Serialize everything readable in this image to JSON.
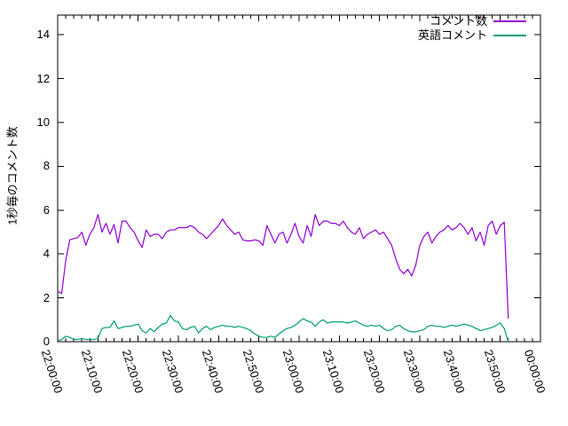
{
  "chart_data": {
    "type": "line",
    "title": "",
    "xlabel": "",
    "ylabel": "1秒毎のコメント数",
    "x_tick_labels": [
      "22:00:00",
      "22:10:00",
      "22:20:00",
      "22:30:00",
      "22:40:00",
      "22:50:00",
      "23:00:00",
      "23:10:00",
      "23:20:00",
      "23:30:00",
      "23:40:00",
      "23:50:00",
      "00:00:00"
    ],
    "x_major_tick_step_minutes": 10,
    "x_minor_tick_step_minutes": 2,
    "x_range_minutes": 120,
    "x_step_seconds": 60,
    "y_ticks": [
      0,
      2,
      4,
      6,
      8,
      10,
      12,
      14
    ],
    "ylim": [
      0,
      14.9
    ],
    "grid": false,
    "legend_position": "top-right-inside",
    "axis_color": "#000000",
    "background": "#ffffff",
    "series": [
      {
        "name": "コメント数",
        "color": "#9400d3",
        "start_time": "22:00:00",
        "values": [
          2.3,
          2.2,
          3.7,
          4.65,
          4.7,
          4.75,
          5.0,
          4.4,
          4.9,
          5.2,
          5.8,
          5.0,
          5.4,
          4.9,
          5.35,
          4.5,
          5.5,
          5.5,
          5.2,
          5.0,
          4.6,
          4.3,
          5.1,
          4.8,
          4.9,
          4.9,
          4.7,
          5.0,
          5.1,
          5.1,
          5.2,
          5.2,
          5.2,
          5.3,
          5.2,
          5.0,
          4.9,
          4.7,
          4.9,
          5.1,
          5.3,
          5.6,
          5.3,
          5.1,
          4.9,
          5.0,
          4.65,
          4.6,
          4.6,
          4.65,
          4.6,
          4.4,
          5.3,
          4.9,
          4.5,
          4.9,
          5.0,
          4.5,
          4.9,
          5.4,
          4.8,
          4.5,
          5.3,
          4.8,
          5.8,
          5.3,
          5.5,
          5.5,
          5.4,
          5.4,
          5.3,
          5.5,
          5.2,
          5.0,
          4.9,
          5.2,
          4.7,
          4.9,
          5.0,
          5.1,
          4.9,
          5.0,
          4.7,
          4.4,
          3.8,
          3.3,
          3.1,
          3.3,
          3.0,
          3.5,
          4.4,
          4.8,
          5.0,
          4.5,
          4.8,
          5.0,
          5.1,
          5.3,
          5.1,
          5.2,
          5.4,
          5.2,
          4.9,
          5.2,
          4.6,
          5.0,
          4.4,
          5.3,
          5.5,
          4.9,
          5.3,
          5.45,
          1.05
        ]
      },
      {
        "name": "英語コメント",
        "color": "#009e73",
        "start_time": "22:00:00",
        "values": [
          0.05,
          0.1,
          0.25,
          0.2,
          0.1,
          0.1,
          0.15,
          0.1,
          0.1,
          0.1,
          0.15,
          0.6,
          0.65,
          0.65,
          0.95,
          0.6,
          0.65,
          0.7,
          0.7,
          0.75,
          0.8,
          0.5,
          0.4,
          0.6,
          0.45,
          0.65,
          0.8,
          0.85,
          1.2,
          0.95,
          0.9,
          0.6,
          0.55,
          0.65,
          0.7,
          0.4,
          0.6,
          0.7,
          0.55,
          0.65,
          0.7,
          0.75,
          0.7,
          0.7,
          0.65,
          0.7,
          0.65,
          0.6,
          0.5,
          0.35,
          0.25,
          0.2,
          0.2,
          0.25,
          0.2,
          0.35,
          0.5,
          0.6,
          0.65,
          0.75,
          0.9,
          1.05,
          0.95,
          0.9,
          0.7,
          0.9,
          1.0,
          0.85,
          0.9,
          0.9,
          0.9,
          0.9,
          0.85,
          0.9,
          0.95,
          0.85,
          0.75,
          0.7,
          0.75,
          0.7,
          0.75,
          0.6,
          0.5,
          0.55,
          0.7,
          0.75,
          0.6,
          0.5,
          0.45,
          0.45,
          0.5,
          0.55,
          0.7,
          0.75,
          0.7,
          0.7,
          0.65,
          0.7,
          0.75,
          0.7,
          0.75,
          0.8,
          0.75,
          0.7,
          0.6,
          0.5,
          0.55,
          0.6,
          0.65,
          0.75,
          0.85,
          0.6,
          0.0
        ]
      }
    ]
  }
}
